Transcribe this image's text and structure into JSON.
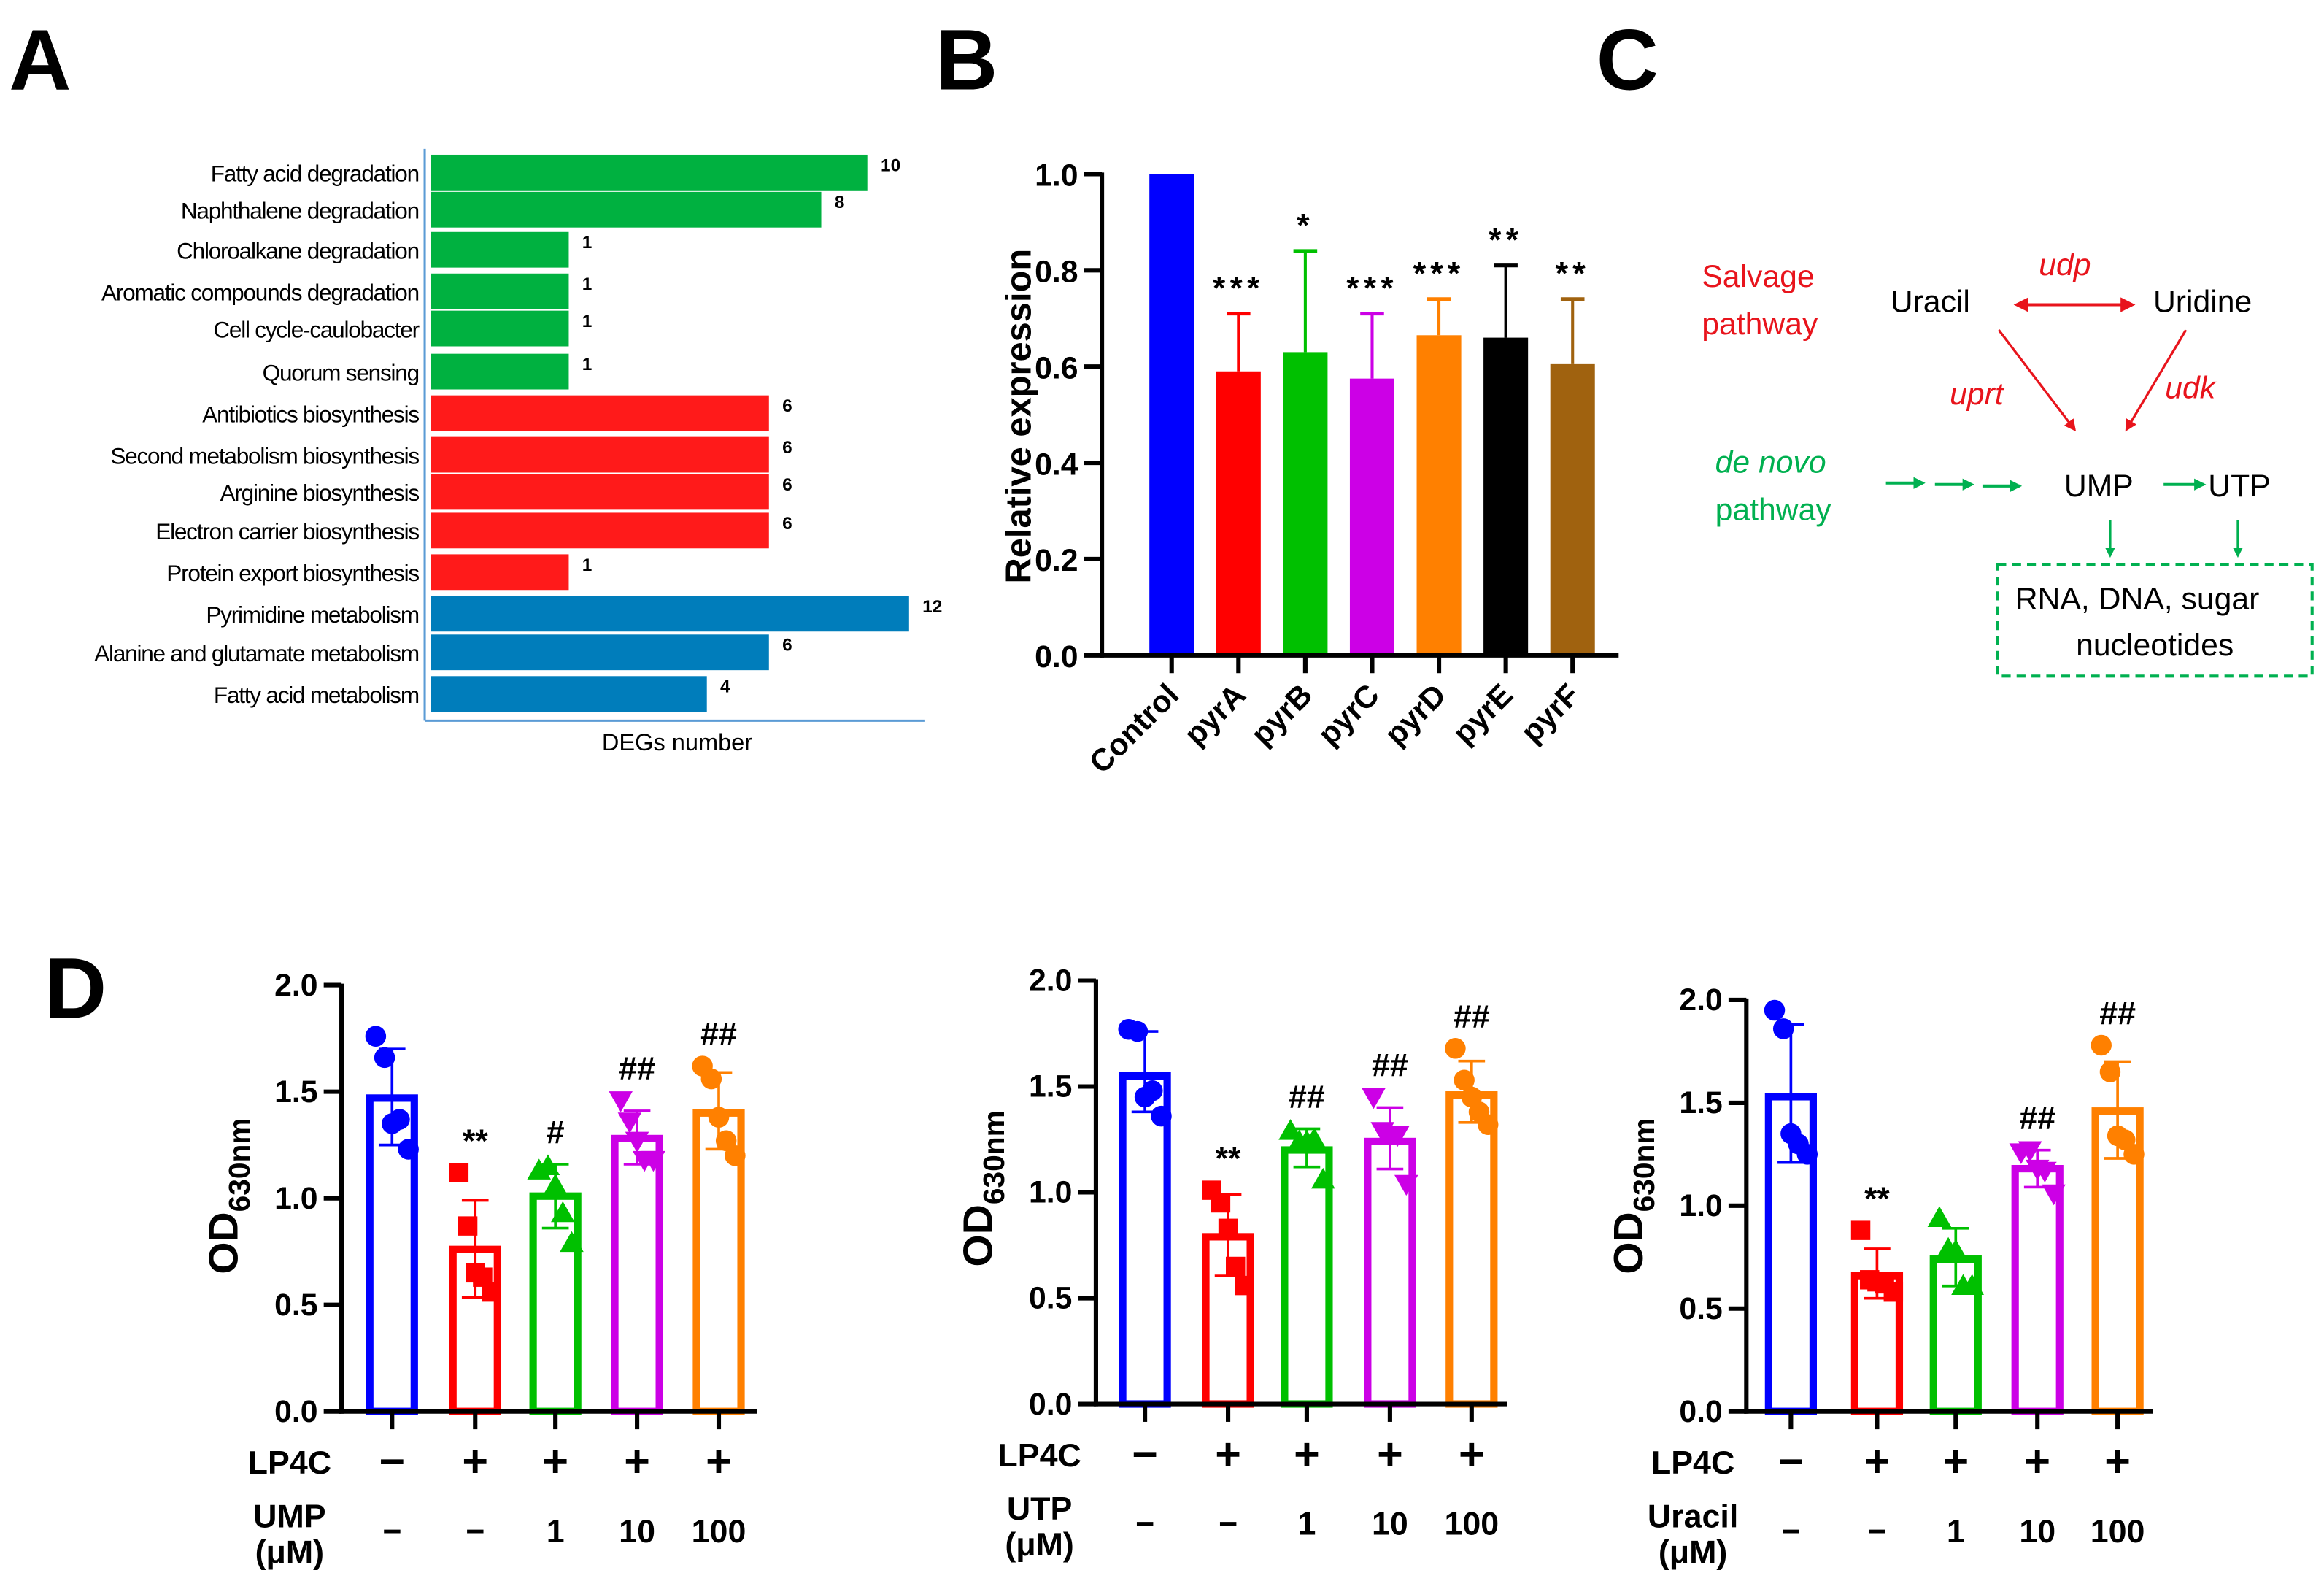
{
  "panel_labels": [
    "A",
    "B",
    "C",
    "D"
  ],
  "chart_data": [
    {
      "id": "A",
      "type": "bar",
      "orientation": "horizontal",
      "scale": "sqrt",
      "xlabel": "DEGs number",
      "categories": [
        "Fatty acid degradation",
        "Naphthalene degradation",
        "Chloroalkane degradation",
        "Aromatic compounds degradation",
        "Cell cycle-caulobacter",
        "Quorum sensing",
        "Antibiotics biosynthesis",
        "Second metabolism biosynthesis",
        "Arginine biosynthesis",
        "Electron carrier biosynthesis",
        "Protein export biosynthesis",
        "Pyrimidine metabolism",
        "Alanine and glutamate metabolism",
        "Fatty acid metabolism"
      ],
      "values": [
        10,
        8,
        1,
        1,
        1,
        1,
        6,
        6,
        6,
        6,
        1,
        12,
        6,
        4
      ],
      "value_labels": [
        "10",
        "8",
        "1",
        "1",
        "1",
        "1",
        "6",
        "6",
        "6",
        "6",
        "1",
        "12",
        "6",
        "4"
      ],
      "colors": [
        "#00b140",
        "#00b140",
        "#00b140",
        "#00b140",
        "#00b140",
        "#00b140",
        "#ff1a1a",
        "#ff1a1a",
        "#ff1a1a",
        "#ff1a1a",
        "#ff1a1a",
        "#007dbb",
        "#007dbb",
        "#007dbb"
      ],
      "axis_color": "#5b9bd5"
    },
    {
      "id": "B",
      "type": "bar",
      "ylabel": "Relative expression",
      "ylim": [
        0,
        1.0
      ],
      "yticks": [
        "0.0",
        "0.2",
        "0.4",
        "0.6",
        "0.8",
        "1.0"
      ],
      "categories": [
        "Control",
        "pyrA",
        "pyrB",
        "pyrC",
        "pyrD",
        "pyrE",
        "pyrF"
      ],
      "values": [
        1.0,
        0.59,
        0.63,
        0.575,
        0.665,
        0.66,
        0.605
      ],
      "error_upper": [
        1.0,
        0.71,
        0.84,
        0.71,
        0.74,
        0.81,
        0.74
      ],
      "significance": [
        "",
        "***",
        "*",
        "***",
        "***",
        "**",
        "**"
      ],
      "colors": [
        "#0000ff",
        "#ff0000",
        "#00c000",
        "#cc00e6",
        "#ff8000",
        "#000000",
        "#a0620f"
      ]
    },
    {
      "id": "D1",
      "type": "bar",
      "ylabel_main": "OD",
      "ylabel_sub": "630nm",
      "ylim": [
        0,
        2.0
      ],
      "yticks": [
        "0.0",
        "0.5",
        "1.0",
        "1.5",
        "2.0"
      ],
      "row1_label": "LP4C",
      "row1": [
        "−",
        "+",
        "+",
        "+",
        "+"
      ],
      "row2_label": "UMP",
      "row2_unit": "(μM)",
      "row2": [
        "−",
        "−",
        "1",
        "10",
        "100"
      ],
      "means": [
        1.47,
        0.76,
        1.01,
        1.28,
        1.4
      ],
      "sd_upper": [
        1.7,
        0.99,
        1.16,
        1.41,
        1.59
      ],
      "sd_lower": [
        1.25,
        0.535,
        0.86,
        1.16,
        1.23
      ],
      "points": [
        [
          1.76,
          1.66,
          1.35,
          1.37,
          1.23
        ],
        [
          1.12,
          0.87,
          0.65,
          0.63,
          0.56
        ],
        [
          1.13,
          1.15,
          1.06,
          0.93,
          0.79
        ],
        [
          1.46,
          1.36,
          1.27,
          1.18,
          1.18
        ],
        [
          1.62,
          1.56,
          1.38,
          1.27,
          1.2
        ]
      ],
      "significance": [
        "",
        "**",
        "#",
        "##",
        "##"
      ],
      "colors": [
        "#0000ff",
        "#ff0000",
        "#00c000",
        "#cc00e6",
        "#ff8000"
      ],
      "markers": [
        "circle",
        "square",
        "triangle-up",
        "triangle-down",
        "circle"
      ]
    },
    {
      "id": "D2",
      "type": "bar",
      "ylabel_main": "OD",
      "ylabel_sub": "630nm",
      "ylim": [
        0,
        2.0
      ],
      "yticks": [
        "0.0",
        "0.5",
        "1.0",
        "1.5",
        "2.0"
      ],
      "row1_label": "LP4C",
      "row1": [
        "−",
        "+",
        "+",
        "+",
        "+"
      ],
      "row2_label": "UTP",
      "row2_unit": "(μM)",
      "row2": [
        "−",
        "−",
        "1",
        "10",
        "100"
      ],
      "means": [
        1.55,
        0.79,
        1.2,
        1.24,
        1.46
      ],
      "sd_upper": [
        1.76,
        0.99,
        1.3,
        1.4,
        1.62
      ],
      "sd_lower": [
        1.38,
        0.605,
        1.12,
        1.11,
        1.33
      ],
      "points": [
        [
          1.77,
          1.76,
          1.45,
          1.48,
          1.36
        ],
        [
          1.01,
          0.95,
          0.83,
          0.65,
          0.56
        ],
        [
          1.29,
          1.24,
          1.24,
          1.25,
          1.06
        ],
        [
          1.45,
          1.29,
          1.27,
          1.27,
          1.04
        ],
        [
          1.68,
          1.53,
          1.45,
          1.38,
          1.32
        ]
      ],
      "significance": [
        "",
        "**",
        "##",
        "##",
        "##"
      ],
      "colors": [
        "#0000ff",
        "#ff0000",
        "#00c000",
        "#cc00e6",
        "#ff8000"
      ],
      "markers": [
        "circle",
        "square",
        "triangle-up",
        "triangle-down",
        "circle"
      ]
    },
    {
      "id": "D3",
      "type": "bar",
      "ylabel_main": "OD",
      "ylabel_sub": "630nm",
      "ylim": [
        0,
        2.0
      ],
      "yticks": [
        "0.0",
        "0.5",
        "1.0",
        "1.5",
        "2.0"
      ],
      "row1_label": "LP4C",
      "row1": [
        "−",
        "+",
        "+",
        "+",
        "+"
      ],
      "row2_label": "Uracil",
      "row2_unit": "(μM)",
      "row2": [
        "−",
        "−",
        "1",
        "10",
        "100"
      ],
      "means": [
        1.53,
        0.66,
        0.74,
        1.18,
        1.46
      ],
      "sd_upper": [
        1.88,
        0.79,
        0.89,
        1.27,
        1.7
      ],
      "sd_lower": [
        1.21,
        0.55,
        0.61,
        1.09,
        1.23
      ],
      "points": [
        [
          1.95,
          1.86,
          1.35,
          1.3,
          1.25
        ],
        [
          0.88,
          0.64,
          0.63,
          0.62,
          0.58
        ],
        [
          0.94,
          0.79,
          0.78,
          0.61,
          0.61
        ],
        [
          1.26,
          1.27,
          1.18,
          1.17,
          1.06
        ],
        [
          1.78,
          1.65,
          1.34,
          1.32,
          1.25
        ]
      ],
      "significance": [
        "",
        "**",
        "",
        "##",
        "##"
      ],
      "colors": [
        "#0000ff",
        "#ff0000",
        "#00c000",
        "#cc00e6",
        "#ff8000"
      ],
      "markers": [
        "circle",
        "square",
        "triangle-up",
        "triangle-down",
        "circle"
      ]
    }
  ],
  "diagram": {
    "salvage_line1": "Salvage",
    "salvage_line2": "pathway",
    "uracil": "Uracil",
    "uridine": "Uridine",
    "udp": "udp",
    "uprt": "uprt",
    "udk": "udk",
    "denovo_line1": "de novo",
    "denovo_line2": "pathway",
    "ump": "UMP",
    "utp": "UTP",
    "box_line1": "RNA,  DNA, sugar",
    "box_line2": "nucleotides",
    "red": "#e8141c",
    "green": "#00b050"
  }
}
